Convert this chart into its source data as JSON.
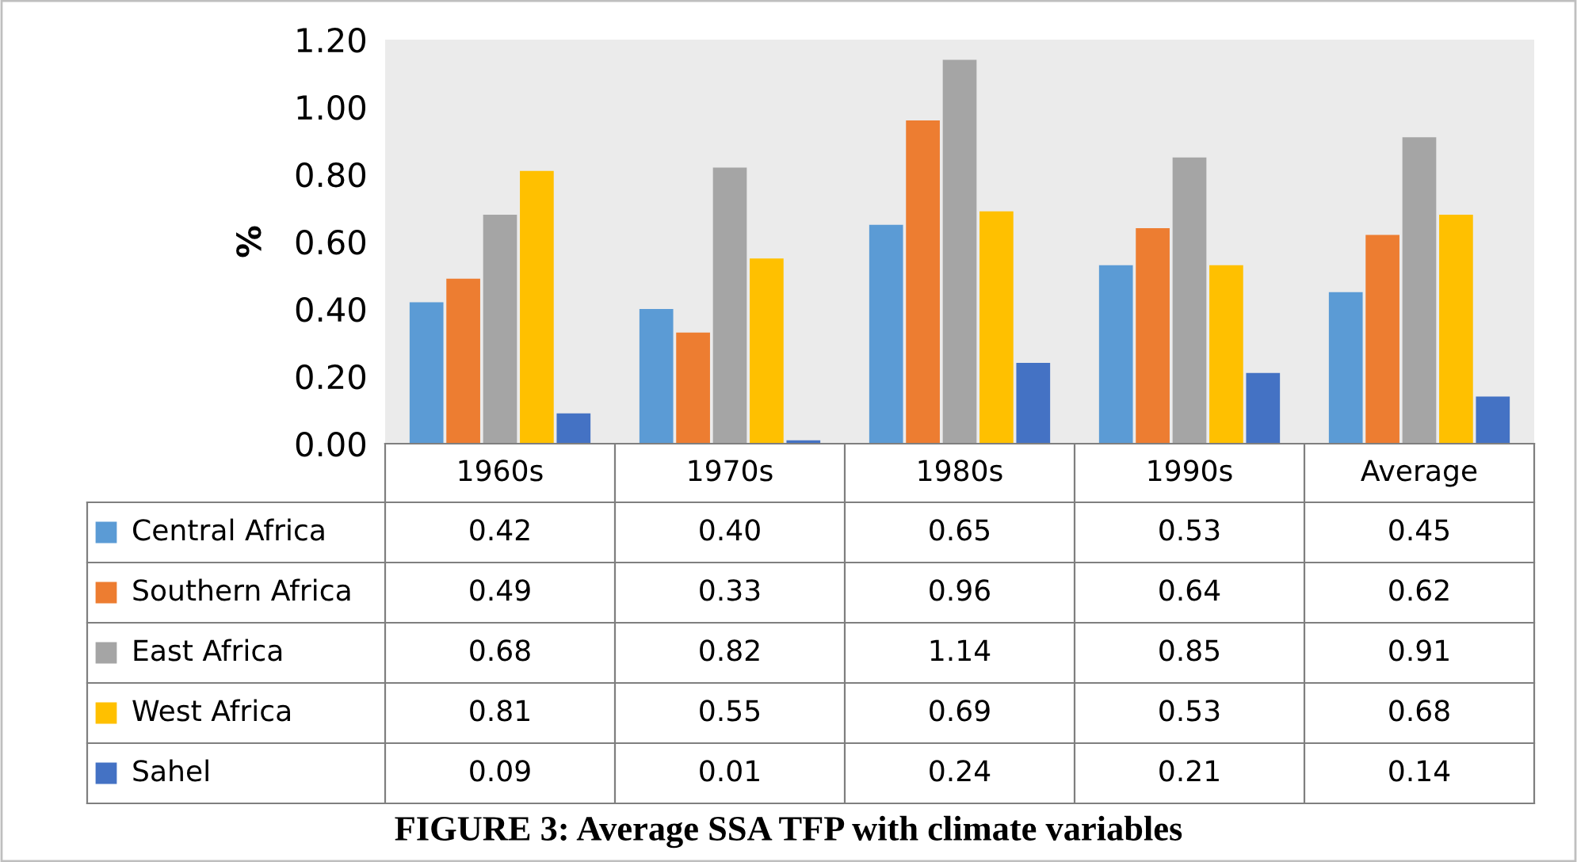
{
  "chart_data": {
    "type": "bar",
    "title": "FIGURE 3: Average SSA TFP with climate variables",
    "ylabel": "%",
    "categories": [
      "1960s",
      "1970s",
      "1980s",
      "1990s",
      "Average"
    ],
    "series": [
      {
        "name": "Central Africa",
        "color": "#5b9bd5",
        "values": [
          0.42,
          0.4,
          0.65,
          0.53,
          0.45
        ],
        "value_labels": [
          "0.42",
          "0.40",
          "0.65",
          "0.53",
          "0.45"
        ]
      },
      {
        "name": "Southern Africa",
        "color": "#ed7d31",
        "values": [
          0.49,
          0.33,
          0.96,
          0.64,
          0.62
        ],
        "value_labels": [
          "0.49",
          "0.33",
          "0.96",
          "0.64",
          "0.62"
        ]
      },
      {
        "name": "East Africa",
        "color": "#a5a5a5",
        "values": [
          0.68,
          0.82,
          1.14,
          0.85,
          0.91
        ],
        "value_labels": [
          "0.68",
          "0.82",
          "1.14",
          "0.85",
          "0.91"
        ]
      },
      {
        "name": "West Africa",
        "color": "#ffc000",
        "values": [
          0.81,
          0.55,
          0.69,
          0.53,
          0.68
        ],
        "value_labels": [
          "0.81",
          "0.55",
          "0.69",
          "0.53",
          "0.68"
        ]
      },
      {
        "name": "Sahel",
        "color": "#4472c4",
        "values": [
          0.09,
          0.01,
          0.24,
          0.21,
          0.14
        ],
        "value_labels": [
          "0.09",
          "0.01",
          "0.24",
          "0.21",
          "0.14"
        ]
      }
    ],
    "ylim": [
      0,
      1.2
    ],
    "yticks": [
      {
        "value": 0,
        "label": "0.00"
      },
      {
        "value": 0.2,
        "label": "0.20"
      },
      {
        "value": 0.4,
        "label": "0.40"
      },
      {
        "value": 0.6,
        "label": "0.60"
      },
      {
        "value": 0.8,
        "label": "0.80"
      },
      {
        "value": 1.0,
        "label": "1.00"
      },
      {
        "value": 1.2,
        "label": "1.20"
      }
    ],
    "grid": false,
    "legend": "bottom"
  }
}
